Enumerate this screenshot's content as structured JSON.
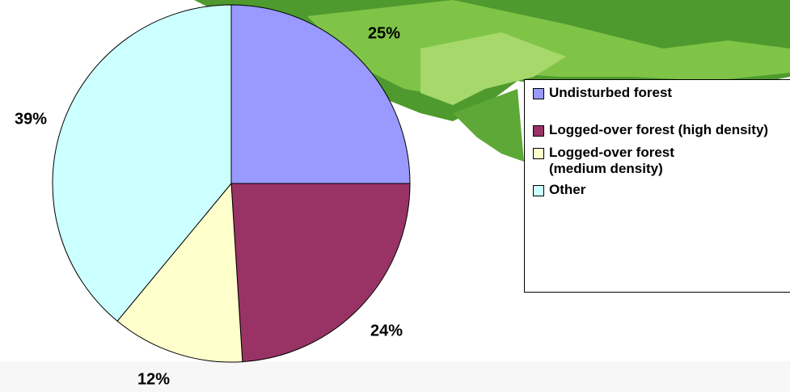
{
  "chart_data": {
    "type": "pie",
    "categories": [
      "Undisturbed forest",
      "Logged-over forest (high density)",
      "Logged-over forest (medium density)",
      "Other"
    ],
    "values": [
      25,
      24,
      12,
      39
    ],
    "value_labels": [
      "25%",
      "24%",
      "12%",
      "39%"
    ],
    "colors": [
      "#9999ff",
      "#993366",
      "#ffffcc",
      "#ccffff"
    ],
    "legend": "right"
  }
}
